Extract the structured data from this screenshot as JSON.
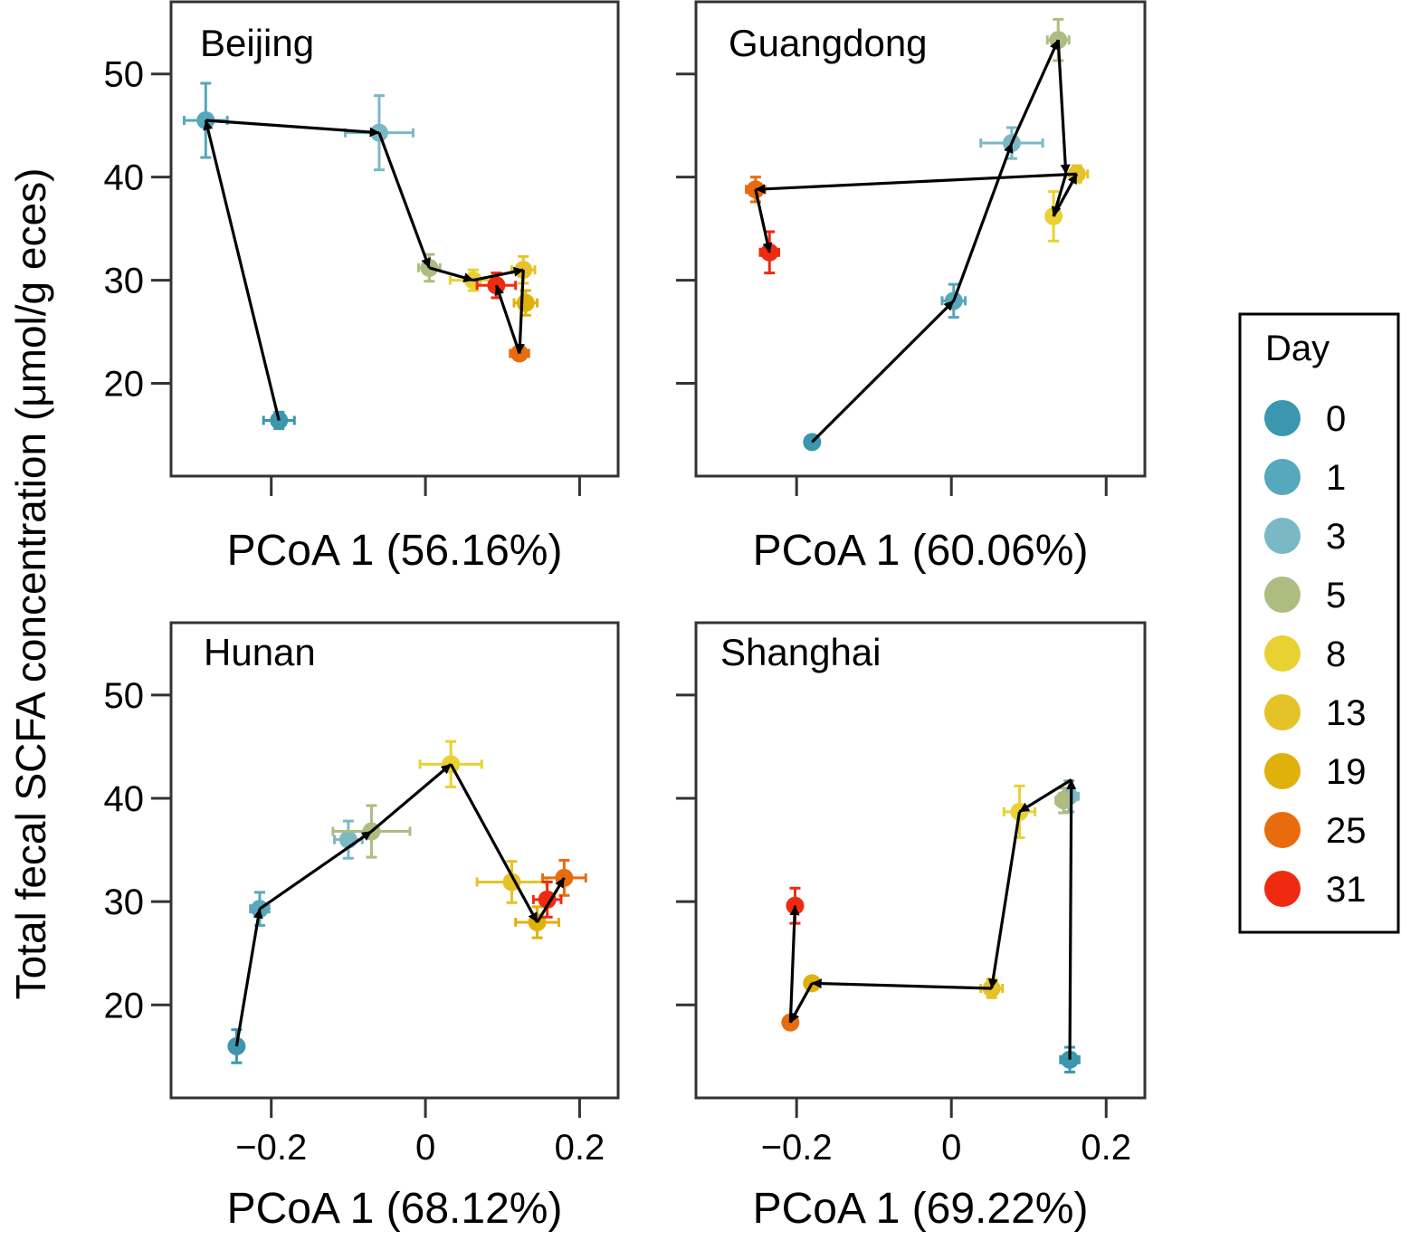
{
  "figure": {
    "ylabel": "Total fecal SCFA concentration (μmol/g eces)"
  },
  "legend": {
    "title": "Day",
    "items": [
      {
        "label": "0",
        "color": "#3a97ae"
      },
      {
        "label": "1",
        "color": "#56a8bc"
      },
      {
        "label": "3",
        "color": "#7bb8c5"
      },
      {
        "label": "5",
        "color": "#adbd82"
      },
      {
        "label": "8",
        "color": "#ead133"
      },
      {
        "label": "13",
        "color": "#e6c229"
      },
      {
        "label": "19",
        "color": "#e1b10b"
      },
      {
        "label": "25",
        "color": "#e86c0d"
      },
      {
        "label": "31",
        "color": "#ee2b10"
      }
    ]
  },
  "chart_data": [
    {
      "type": "scatter",
      "title": "Beijing",
      "xlabel": "PCoA 1 (56.16%)",
      "ylabel": "Total fecal SCFA concentration (μmol/g eces)",
      "xlim": [
        -0.33,
        0.25
      ],
      "ylim": [
        11,
        57
      ],
      "xticks": [
        -0.2,
        0,
        0.2
      ],
      "yticks": [
        20,
        30,
        40,
        50
      ],
      "show_xtick_labels": false,
      "show_ytick_labels": true,
      "grid": false,
      "points": [
        {
          "day": "0",
          "x": -0.19,
          "y": 16.4,
          "xerr": 0.02,
          "yerr": 0.8
        },
        {
          "day": "1",
          "x": -0.285,
          "y": 45.5,
          "xerr": 0.028,
          "yerr": 3.6
        },
        {
          "day": "3",
          "x": -0.06,
          "y": 44.3,
          "xerr": 0.044,
          "yerr": 3.6
        },
        {
          "day": "5",
          "x": 0.005,
          "y": 31.2,
          "xerr": 0.014,
          "yerr": 1.3
        },
        {
          "day": "8",
          "x": 0.062,
          "y": 30.0,
          "xerr": 0.03,
          "yerr": 1.0
        },
        {
          "day": "13",
          "x": 0.127,
          "y": 31.0,
          "xerr": 0.015,
          "yerr": 1.3
        },
        {
          "day": "19",
          "x": 0.13,
          "y": 27.8,
          "xerr": 0.015,
          "yerr": 1.2
        },
        {
          "day": "25",
          "x": 0.122,
          "y": 22.9,
          "xerr": 0.012,
          "yerr": 0.6
        },
        {
          "day": "31",
          "x": 0.092,
          "y": 29.5,
          "xerr": 0.025,
          "yerr": 1.2
        }
      ],
      "trajectory": [
        [
          -0.19,
          16.4
        ],
        [
          -0.285,
          45.5
        ],
        [
          -0.06,
          44.3
        ],
        [
          0.005,
          31.2
        ],
        [
          0.062,
          30.0
        ],
        [
          0.127,
          31.0
        ],
        [
          0.122,
          22.9
        ],
        [
          0.092,
          29.5
        ]
      ]
    },
    {
      "type": "scatter",
      "title": "Guangdong",
      "xlabel": "PCoA 1 (60.06%)",
      "ylabel": "Total fecal SCFA concentration (μmol/g eces)",
      "xlim": [
        -0.33,
        0.25
      ],
      "ylim": [
        11,
        57
      ],
      "xticks": [
        -0.2,
        0,
        0.2
      ],
      "yticks": [
        20,
        30,
        40,
        50
      ],
      "show_xtick_labels": false,
      "show_ytick_labels": false,
      "grid": false,
      "points": [
        {
          "day": "0",
          "x": -0.18,
          "y": 14.3,
          "xerr": 0.0,
          "yerr": 0.0
        },
        {
          "day": "1",
          "x": 0.003,
          "y": 28.0,
          "xerr": 0.015,
          "yerr": 1.6
        },
        {
          "day": "3",
          "x": 0.078,
          "y": 43.3,
          "xerr": 0.04,
          "yerr": 1.5
        },
        {
          "day": "5",
          "x": 0.138,
          "y": 53.3,
          "xerr": 0.014,
          "yerr": 2.0
        },
        {
          "day": "8",
          "x": 0.132,
          "y": 36.2,
          "xerr": 0.008,
          "yerr": 2.4
        },
        {
          "day": "13",
          "x": 0.162,
          "y": 40.3,
          "xerr": 0.014,
          "yerr": 0.8
        },
        {
          "day": "25",
          "x": -0.253,
          "y": 38.8,
          "xerr": 0.012,
          "yerr": 1.2
        },
        {
          "day": "31",
          "x": -0.235,
          "y": 32.7,
          "xerr": 0.012,
          "yerr": 2.0
        }
      ],
      "trajectory": [
        [
          -0.18,
          14.3
        ],
        [
          0.003,
          28.0
        ],
        [
          0.078,
          43.3
        ],
        [
          0.138,
          53.3
        ],
        [
          0.148,
          40.3
        ],
        [
          0.132,
          36.2
        ],
        [
          0.162,
          40.3
        ],
        [
          -0.253,
          38.8
        ],
        [
          -0.235,
          32.7
        ]
      ]
    },
    {
      "type": "scatter",
      "title": "Hunan",
      "xlabel": "PCoA 1 (68.12%)",
      "ylabel": "Total fecal SCFA concentration (μmol/g eces)",
      "xlim": [
        -0.33,
        0.25
      ],
      "ylim": [
        11,
        57
      ],
      "xticks": [
        -0.2,
        0,
        0.2
      ],
      "xtick_labels": [
        "−0.2",
        "0",
        "0.2"
      ],
      "yticks": [
        20,
        30,
        40,
        50
      ],
      "show_xtick_labels": true,
      "show_ytick_labels": true,
      "grid": false,
      "points": [
        {
          "day": "0",
          "x": -0.245,
          "y": 16.0,
          "xerr": 0.0,
          "yerr": 1.6
        },
        {
          "day": "1",
          "x": -0.215,
          "y": 29.3,
          "xerr": 0.012,
          "yerr": 1.6
        },
        {
          "day": "3",
          "x": -0.1,
          "y": 36.0,
          "xerr": 0.018,
          "yerr": 1.8
        },
        {
          "day": "5",
          "x": -0.07,
          "y": 36.8,
          "xerr": 0.05,
          "yerr": 2.5
        },
        {
          "day": "8",
          "x": 0.033,
          "y": 43.3,
          "xerr": 0.04,
          "yerr": 2.2
        },
        {
          "day": "13",
          "x": 0.112,
          "y": 31.9,
          "xerr": 0.045,
          "yerr": 2.0
        },
        {
          "day": "19",
          "x": 0.145,
          "y": 28.0,
          "xerr": 0.028,
          "yerr": 1.5
        },
        {
          "day": "25",
          "x": 0.18,
          "y": 32.3,
          "xerr": 0.028,
          "yerr": 1.7
        },
        {
          "day": "31",
          "x": 0.158,
          "y": 30.2,
          "xerr": 0.018,
          "yerr": 1.7
        }
      ],
      "trajectory": [
        [
          -0.245,
          16.0
        ],
        [
          -0.215,
          29.3
        ],
        [
          -0.07,
          36.8
        ],
        [
          0.033,
          43.3
        ],
        [
          0.145,
          28.0
        ],
        [
          0.18,
          32.3
        ]
      ]
    },
    {
      "type": "scatter",
      "title": "Shanghai",
      "xlabel": "PCoA 1 (69.22%)",
      "ylabel": "Total fecal SCFA concentration (μmol/g eces)",
      "xlim": [
        -0.33,
        0.25
      ],
      "ylim": [
        11,
        57
      ],
      "xticks": [
        -0.2,
        0,
        0.2
      ],
      "xtick_labels": [
        "−0.2",
        "0",
        "0.2"
      ],
      "yticks": [
        20,
        30,
        40,
        50
      ],
      "show_xtick_labels": true,
      "show_ytick_labels": false,
      "grid": false,
      "points": [
        {
          "day": "0",
          "x": 0.153,
          "y": 14.7,
          "xerr": 0.012,
          "yerr": 1.2
        },
        {
          "day": "3",
          "x": 0.152,
          "y": 40.2,
          "xerr": 0.012,
          "yerr": 1.5
        },
        {
          "day": "5",
          "x": 0.145,
          "y": 39.8,
          "xerr": 0.01,
          "yerr": 1.2
        },
        {
          "day": "8",
          "x": 0.088,
          "y": 38.7,
          "xerr": 0.02,
          "yerr": 2.5
        },
        {
          "day": "13",
          "x": 0.052,
          "y": 21.6,
          "xerr": 0.014,
          "yerr": 0.9
        },
        {
          "day": "19",
          "x": -0.18,
          "y": 22.1,
          "xerr": 0.0,
          "yerr": 0.0
        },
        {
          "day": "25",
          "x": -0.208,
          "y": 18.3,
          "xerr": 0.0,
          "yerr": 0.0
        },
        {
          "day": "31",
          "x": -0.202,
          "y": 29.6,
          "xerr": 0.0,
          "yerr": 1.7
        }
      ],
      "trajectory": [
        [
          0.153,
          14.7
        ],
        [
          0.155,
          41.8
        ],
        [
          0.088,
          38.7
        ],
        [
          0.052,
          21.6
        ],
        [
          -0.18,
          22.1
        ],
        [
          -0.208,
          18.3
        ],
        [
          -0.202,
          29.6
        ]
      ]
    }
  ]
}
